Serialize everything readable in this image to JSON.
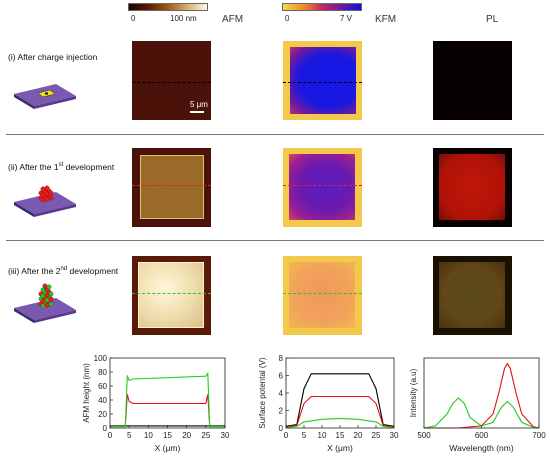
{
  "headers": {
    "afm": "AFM",
    "kfm": "KFM",
    "pl": "PL"
  },
  "colorbars": {
    "afm": {
      "min": "0",
      "max": "100 nm"
    },
    "kfm": {
      "min": "0",
      "max": "7 V"
    }
  },
  "scale_bar_label": "5 μm",
  "rows": [
    {
      "prefix": "(i) After charge injection",
      "sup": "",
      "suffix": ""
    },
    {
      "prefix": "(ii) After the 1",
      "sup": "st",
      "suffix": " development"
    },
    {
      "prefix": "(iii) After the 2",
      "sup": "nd",
      "suffix": " development"
    }
  ],
  "colors": {
    "black": "#000000",
    "red": "#e01010",
    "green": "#22cc22",
    "kfm_blue": "#1018e0",
    "afm_bg": "#4a1208"
  },
  "chart_data": [
    {
      "type": "line",
      "xlabel": "X (μm)",
      "ylabel": "AFM height (nm)",
      "xlim": [
        0,
        30
      ],
      "ylim": [
        0,
        100
      ],
      "xticks": [
        0,
        5,
        10,
        15,
        20,
        25,
        30
      ],
      "yticks": [
        0,
        20,
        40,
        60,
        80,
        100
      ],
      "series": [
        {
          "color": "#000000",
          "x": [
            0,
            30
          ],
          "y": [
            3,
            3
          ]
        },
        {
          "color": "#e01010",
          "x": [
            0,
            4,
            4.5,
            5,
            6,
            25,
            25.5,
            26,
            27,
            30
          ],
          "y": [
            2,
            2,
            48,
            38,
            35,
            35,
            48,
            2,
            2,
            2
          ]
        },
        {
          "color": "#22cc22",
          "x": [
            0,
            4,
            4.5,
            5,
            6,
            25,
            25.5,
            26,
            27,
            30
          ],
          "y": [
            2,
            2,
            75,
            68,
            70,
            74,
            78,
            2,
            2,
            2
          ]
        }
      ]
    },
    {
      "type": "line",
      "xlabel": "X (μm)",
      "ylabel": "Surface potental (V)",
      "xlim": [
        0,
        30
      ],
      "ylim": [
        0,
        8
      ],
      "xticks": [
        0,
        5,
        10,
        15,
        20,
        25,
        30
      ],
      "yticks": [
        0,
        2,
        4,
        6,
        8
      ],
      "series": [
        {
          "color": "#000000",
          "x": [
            0,
            3,
            5,
            7,
            23,
            25,
            27,
            30
          ],
          "y": [
            0.2,
            0.4,
            4.5,
            6.2,
            6.2,
            4.5,
            0.4,
            0.2
          ]
        },
        {
          "color": "#e01010",
          "x": [
            0,
            3,
            5,
            7,
            23,
            25,
            27,
            30
          ],
          "y": [
            0.1,
            0.3,
            2.8,
            3.6,
            3.6,
            2.8,
            0.3,
            0.1
          ]
        },
        {
          "color": "#22cc22",
          "x": [
            0,
            3,
            5,
            10,
            15,
            20,
            25,
            27,
            30
          ],
          "y": [
            0.05,
            0.2,
            0.7,
            1.0,
            1.1,
            1.0,
            0.7,
            0.2,
            0.05
          ]
        }
      ]
    },
    {
      "type": "line",
      "xlabel": "Wavelength  (nm)",
      "ylabel": "Intensity (a.u)",
      "xlim": [
        500,
        700
      ],
      "ylim": [
        0,
        1
      ],
      "xticks": [
        500,
        600,
        700
      ],
      "yticks": [],
      "series": [
        {
          "color": "#e01010",
          "x": [
            500,
            560,
            600,
            620,
            630,
            640,
            645,
            650,
            660,
            670,
            690,
            700
          ],
          "y": [
            0,
            0,
            0.03,
            0.2,
            0.5,
            0.85,
            0.92,
            0.85,
            0.5,
            0.2,
            0.02,
            0
          ]
        },
        {
          "color": "#22cc22",
          "x": [
            500,
            520,
            540,
            550,
            560,
            570,
            580,
            600,
            620,
            635,
            645,
            655,
            670,
            690,
            700
          ],
          "y": [
            0,
            0.03,
            0.2,
            0.35,
            0.43,
            0.35,
            0.15,
            0.03,
            0.08,
            0.3,
            0.38,
            0.3,
            0.08,
            0.01,
            0
          ]
        }
      ]
    }
  ]
}
